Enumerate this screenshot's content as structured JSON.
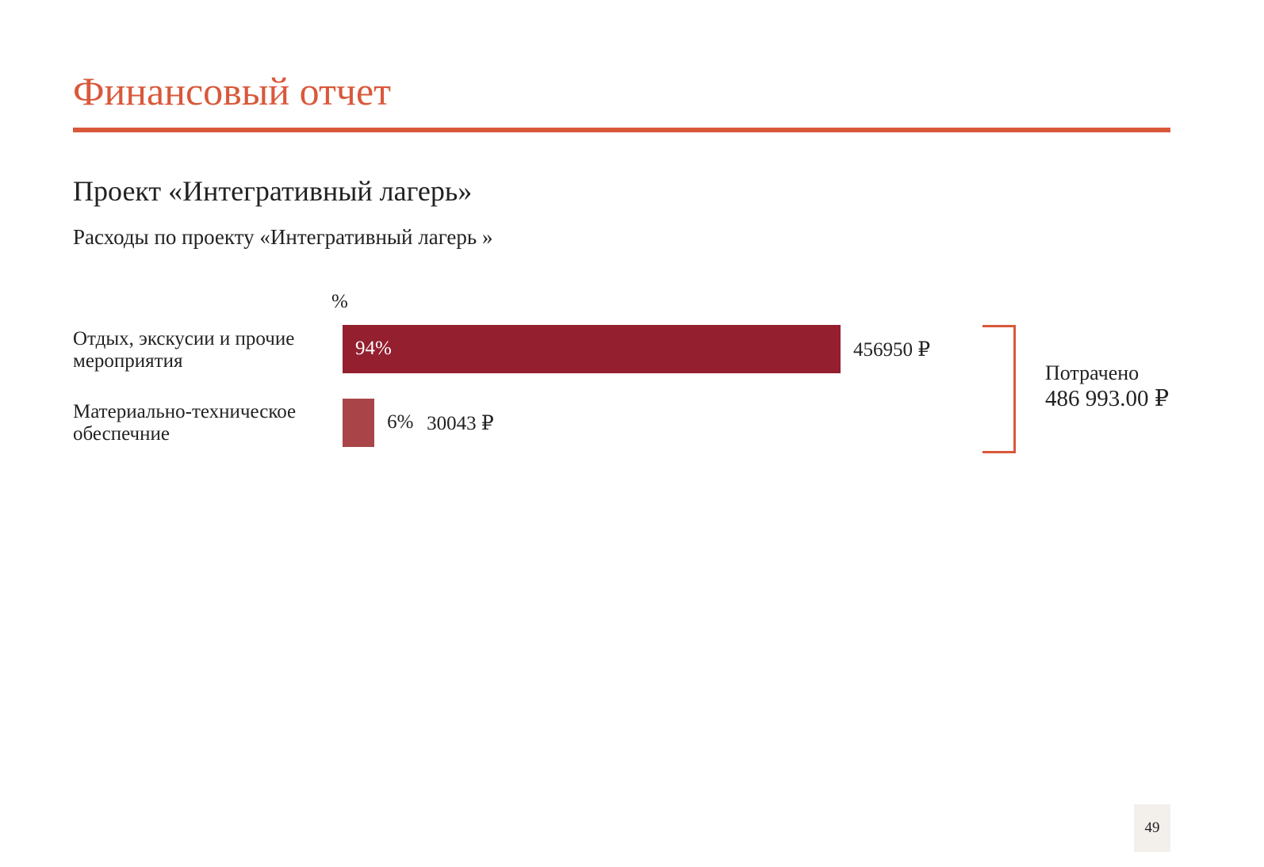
{
  "header": {
    "title": "Финансовый отчет"
  },
  "section": {
    "subtitle": "Проект «Интегративный лагерь»",
    "caption": "Расходы по проекту «Интегративный лагерь »"
  },
  "summary": {
    "label": "Потрачено",
    "value": "486 993.00 ₽"
  },
  "page_number": "49",
  "colors": {
    "accent": "#d9583b",
    "bar_primary": "#931f2f",
    "bar_secondary": "#a94548"
  },
  "chart_data": {
    "type": "bar",
    "orientation": "horizontal",
    "unit_label": "%",
    "categories": [
      "Отдых, экскусии и прочие мероприятия",
      "Материально-техническое обеспечние"
    ],
    "values": [
      94,
      6
    ],
    "percent_labels": [
      "94%",
      "6%"
    ],
    "amount_labels": [
      "456950 ₽",
      "30043 ₽"
    ],
    "amounts": [
      456950,
      30043
    ],
    "xlim": [
      0,
      94
    ]
  }
}
